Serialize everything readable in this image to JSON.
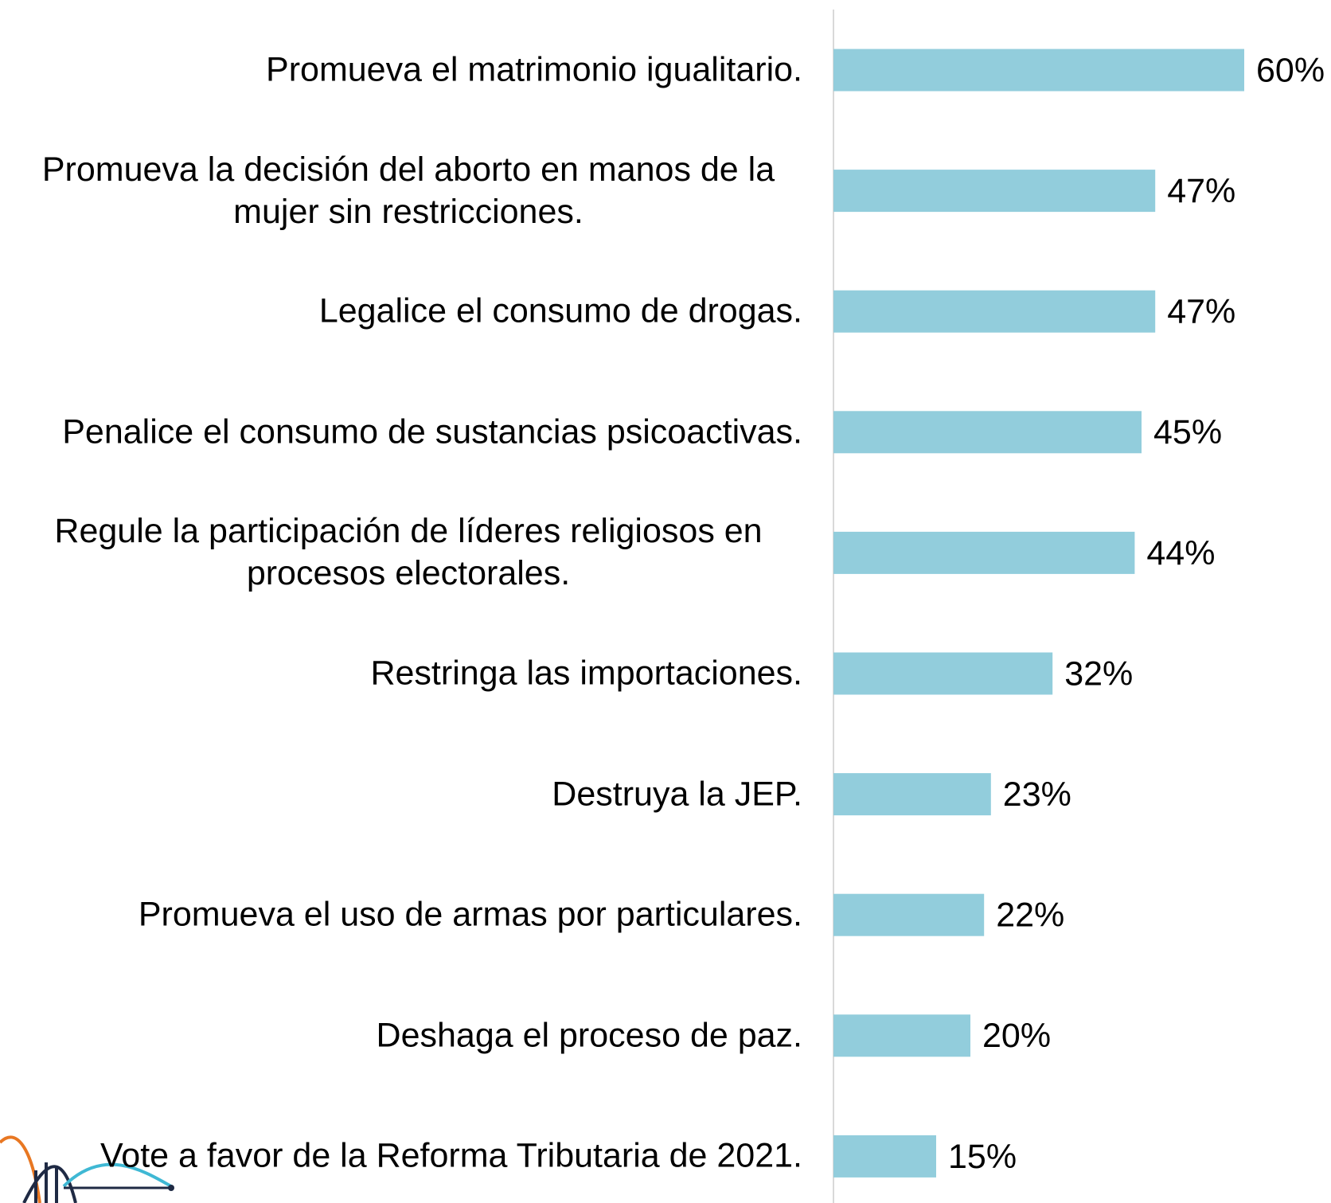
{
  "chart_data": {
    "type": "bar",
    "orientation": "horizontal",
    "categories": [
      "Promueva el matrimonio igualitario.",
      "Promueva la decisión del aborto en manos de la mujer sin restricciones.",
      "Legalice el consumo de drogas.",
      "Penalice el consumo de sustancias psicoactivas.",
      "Regule la participación de líderes religiosos en procesos electorales.",
      "Restringa las importaciones.",
      "Destruya la JEP.",
      "Promueva el uso de armas por particulares.",
      "Deshaga el proceso de paz.",
      "Vote a favor de la Reforma Tributaria de 2021."
    ],
    "values": [
      60,
      47,
      47,
      45,
      44,
      32,
      23,
      22,
      20,
      15
    ],
    "value_labels": [
      "60%",
      "47%",
      "47%",
      "45%",
      "44%",
      "32%",
      "23%",
      "22%",
      "20%",
      "15%"
    ],
    "color": "#92cddc",
    "xlim": [
      0,
      70
    ]
  }
}
